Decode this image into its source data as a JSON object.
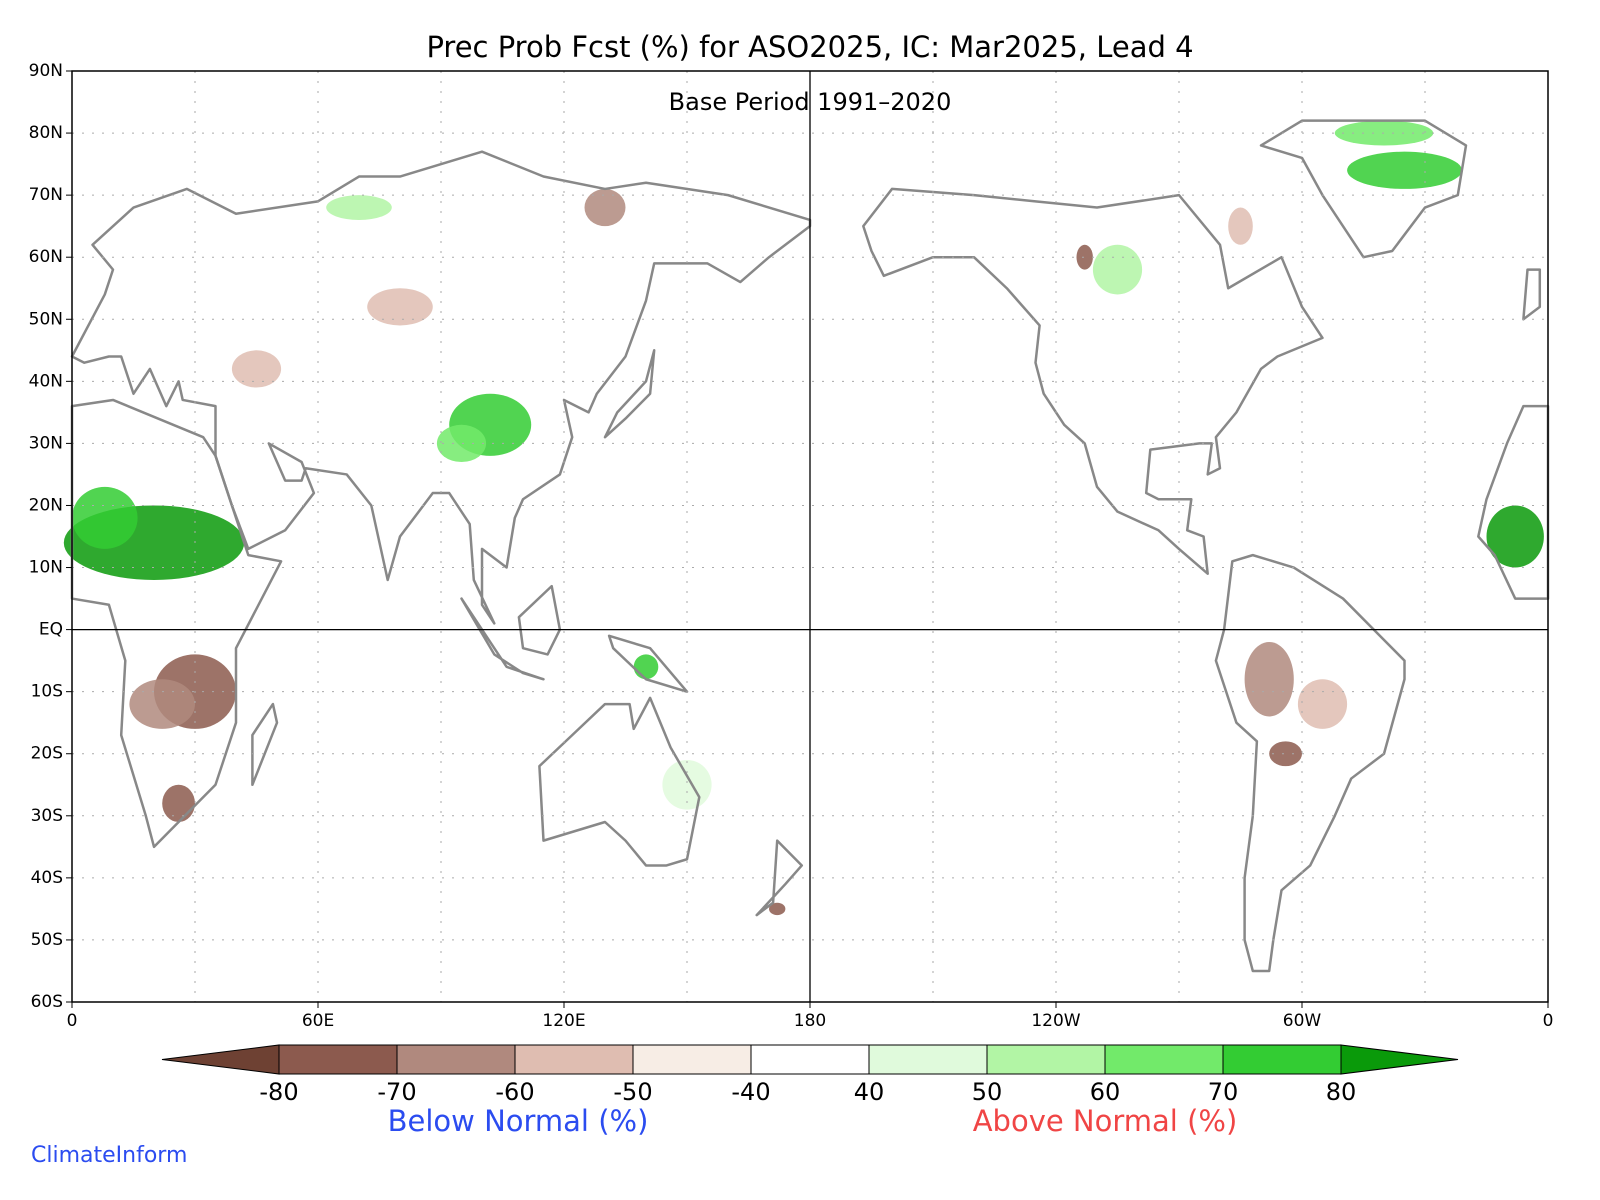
{
  "header": {
    "title": "Prec Prob Fcst (%) for ASO2025, IC: Mar2025, Lead 4",
    "subtitle": "Base Period 1991–2020"
  },
  "map": {
    "xlim": [
      0,
      360
    ],
    "ylim": [
      -60,
      90
    ],
    "grid": true,
    "lon_ticks": [
      {
        "value": 0,
        "label": "0"
      },
      {
        "value": 60,
        "label": "60E"
      },
      {
        "value": 120,
        "label": "120E"
      },
      180,
      {
        "value": 240,
        "label": "120W"
      },
      {
        "value": 300,
        "label": "60W"
      },
      {
        "value": 360,
        "label": "0"
      }
    ],
    "lon_gridlines": [
      30,
      60,
      90,
      120,
      150,
      210,
      240,
      270,
      300,
      330
    ],
    "lat_ticks": [
      {
        "value": 90,
        "label": "90N"
      },
      {
        "value": 80,
        "label": "80N"
      },
      {
        "value": 70,
        "label": "70N"
      },
      {
        "value": 60,
        "label": "60N"
      },
      {
        "value": 50,
        "label": "50N"
      },
      {
        "value": 40,
        "label": "40N"
      },
      {
        "value": 30,
        "label": "30N"
      },
      {
        "value": 20,
        "label": "20N"
      },
      {
        "value": 10,
        "label": "10N"
      },
      {
        "value": 0,
        "label": "EQ"
      },
      {
        "value": -10,
        "label": "10S"
      },
      {
        "value": -20,
        "label": "20S"
      },
      {
        "value": -30,
        "label": "30S"
      },
      {
        "value": -40,
        "label": "40S"
      },
      {
        "value": -50,
        "label": "50S"
      },
      {
        "value": -60,
        "label": "60S"
      }
    ]
  },
  "colorbar": {
    "ticks": [
      -80,
      -70,
      -60,
      -50,
      -40,
      40,
      50,
      60,
      70,
      80
    ],
    "colors": [
      "#6e4133",
      "#8c5a4e",
      "#b0897e",
      "#dfbdb1",
      "#f7ede5",
      "#ffffff",
      "#e0fadc",
      "#b2f5a5",
      "#72ea6a",
      "#33cc33",
      "#0a9a0a"
    ],
    "below_label": "Below Normal (%)",
    "above_label": "Above Normal (%)"
  },
  "footer": {
    "credit": "ClimateInform"
  }
}
